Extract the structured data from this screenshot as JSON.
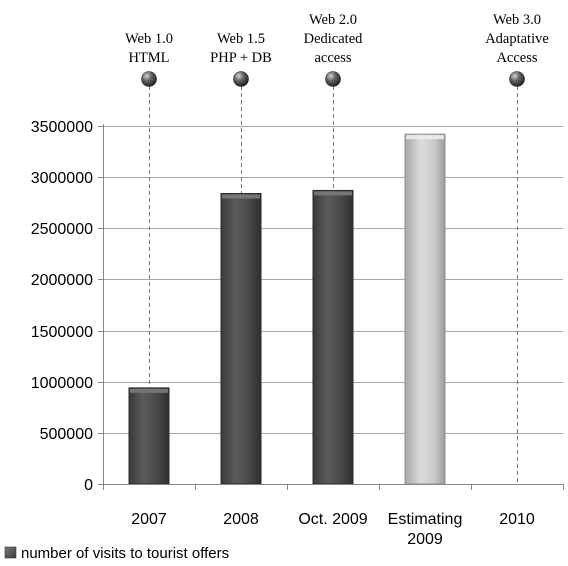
{
  "chart_data": {
    "type": "bar",
    "categories": [
      [
        "2007"
      ],
      [
        "2008"
      ],
      [
        "Oct. 2009"
      ],
      [
        "Estimating",
        "2009"
      ],
      [
        "2010"
      ]
    ],
    "series": [
      {
        "name": "number of visits to tourist offers",
        "values": [
          940000,
          2840000,
          2870000,
          3420000,
          null
        ],
        "colors": [
          "#4a4a4a",
          "#4a4a4a",
          "#4a4a4a",
          "#c8c8c8",
          null
        ]
      }
    ],
    "ylim": [
      0,
      3500000
    ],
    "yticks": [
      "0",
      "500000",
      "1000000",
      "1500000",
      "2000000",
      "2500000",
      "3000000",
      "3500000"
    ],
    "grid": true,
    "legend": "bottom-left",
    "milestones": [
      {
        "category_index": 0,
        "lines": [
          "Web 1.0",
          "HTML"
        ]
      },
      {
        "category_index": 1,
        "lines": [
          "Web 1.5",
          "PHP + DB"
        ]
      },
      {
        "category_index": 2,
        "lines": [
          "Web 2.0",
          "Dedicated",
          "access"
        ]
      },
      {
        "category_index": 4,
        "lines": [
          "Web 3.0",
          "Adaptative",
          "Access"
        ]
      }
    ]
  }
}
